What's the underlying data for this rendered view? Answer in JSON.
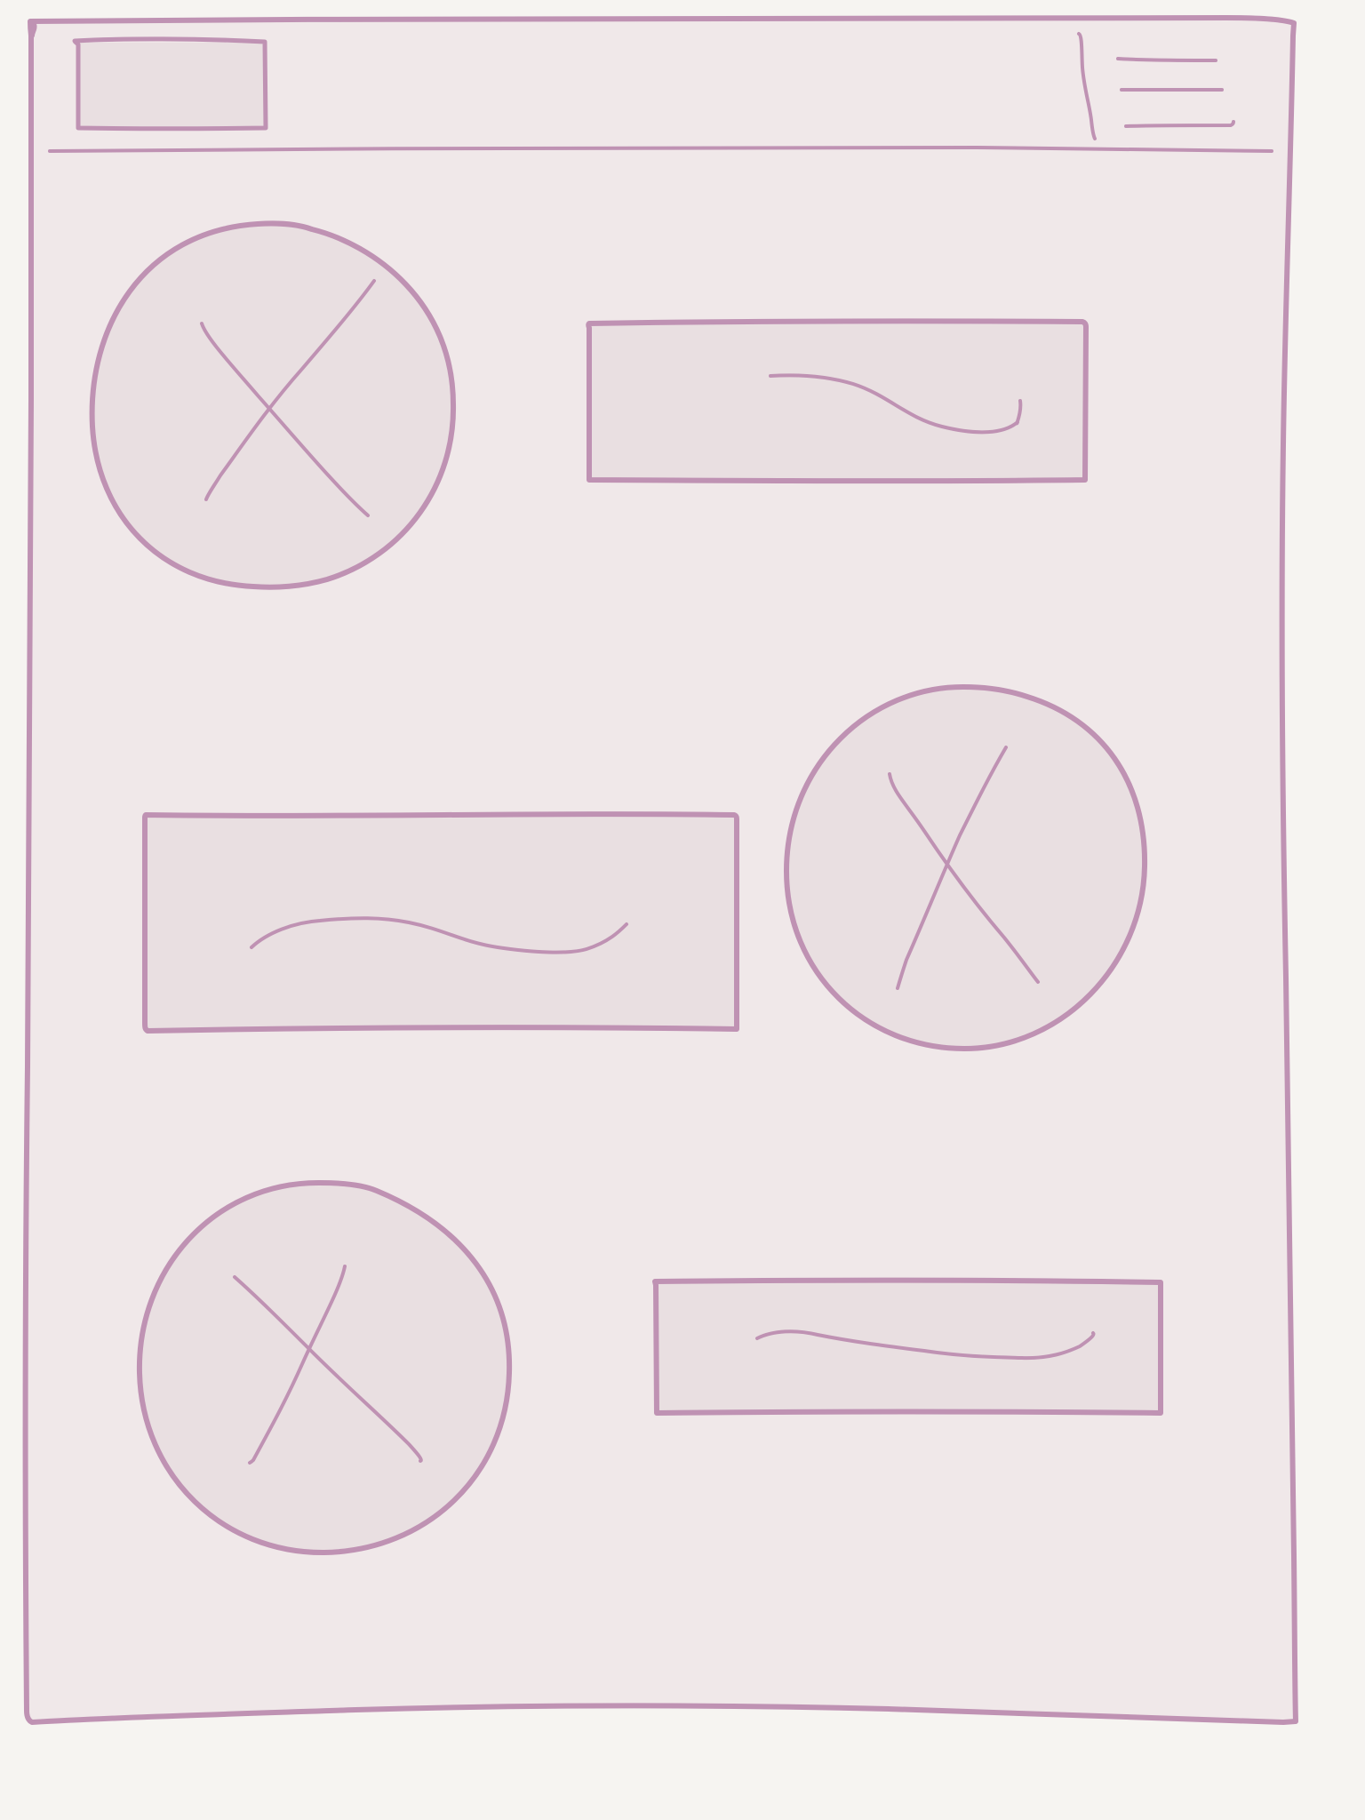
{
  "colors": {
    "background": "#f6f4f1",
    "panel": "#f0e8e9",
    "placeholder_fill": "#e9dfe1",
    "stroke": "#bf92b3"
  },
  "header": {
    "logo": {
      "kind": "logo-placeholder"
    },
    "menu": {
      "icon": "hamburger-menu-icon"
    }
  },
  "content": {
    "rows": [
      {
        "image": {
          "kind": "image-placeholder"
        },
        "text": {
          "kind": "text-placeholder"
        },
        "image_side": "left"
      },
      {
        "image": {
          "kind": "image-placeholder"
        },
        "text": {
          "kind": "text-placeholder"
        },
        "image_side": "right"
      },
      {
        "image": {
          "kind": "image-placeholder"
        },
        "text": {
          "kind": "text-placeholder"
        },
        "image_side": "left"
      }
    ]
  }
}
